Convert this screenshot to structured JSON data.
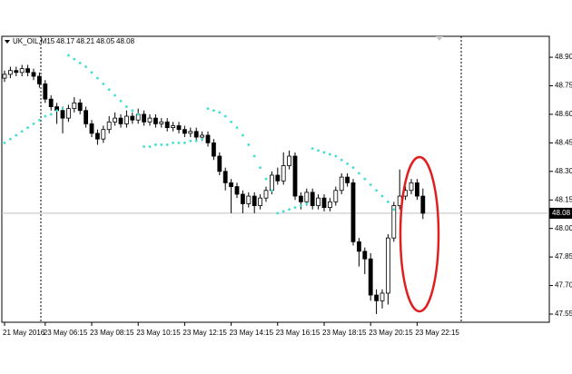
{
  "header": {
    "symbol": "UK_OIL,M15"
  },
  "chart_data": {
    "type": "candlestick",
    "categories": [
      "21 May 2016",
      null,
      null,
      null,
      null,
      null,
      null,
      "23 May 06:15",
      null,
      null,
      null,
      null,
      null,
      null,
      null,
      "23 May 08:15",
      null,
      null,
      null,
      null,
      null,
      null,
      null,
      "23 May 10:15",
      null,
      null,
      null,
      null,
      null,
      null,
      null,
      "23 May 12:15",
      null,
      null,
      null,
      null,
      null,
      null,
      null,
      "23 May 14:15",
      null,
      null,
      null,
      null,
      null,
      null,
      null,
      "23 May 16:15",
      null,
      null,
      null,
      null,
      null,
      null,
      null,
      "23 May 18:15",
      null,
      null,
      null,
      null,
      null,
      null,
      null,
      "23 May 20:15",
      null,
      null,
      null,
      null,
      null,
      null,
      null,
      "23 May 22:15",
      null
    ],
    "open": [
      48.79,
      48.81,
      48.83,
      48.82,
      48.84,
      48.82,
      48.8,
      48.76,
      48.68,
      48.64,
      48.62,
      48.58,
      48.63,
      48.66,
      48.62,
      48.55,
      48.5,
      48.47,
      48.52,
      48.56,
      48.58,
      48.55,
      48.59,
      48.57,
      48.6,
      48.56,
      48.58,
      48.55,
      48.56,
      48.53,
      48.54,
      48.52,
      48.5,
      48.51,
      48.48,
      48.49,
      48.45,
      48.38,
      48.3,
      48.24,
      48.22,
      48.18,
      48.13,
      48.17,
      48.12,
      48.16,
      48.2,
      48.28,
      48.25,
      48.33,
      48.38,
      48.17,
      48.14,
      48.19,
      48.12,
      48.16,
      48.11,
      48.14,
      48.2,
      48.27,
      48.24,
      47.93,
      47.88,
      47.84,
      47.65,
      47.62,
      47.66,
      47.95,
      48.12,
      48.17,
      48.2,
      48.24,
      48.17
    ],
    "high": [
      48.83,
      48.85,
      48.85,
      48.86,
      48.86,
      48.84,
      48.82,
      48.78,
      48.7,
      48.66,
      48.64,
      48.65,
      48.69,
      48.68,
      48.64,
      48.57,
      48.52,
      48.54,
      48.59,
      48.61,
      48.6,
      48.62,
      48.61,
      48.63,
      48.62,
      48.6,
      48.6,
      48.58,
      48.58,
      48.56,
      48.56,
      48.54,
      48.53,
      48.53,
      48.51,
      48.51,
      48.47,
      48.4,
      48.32,
      48.26,
      48.24,
      48.2,
      48.19,
      48.19,
      48.18,
      48.22,
      48.3,
      48.32,
      48.4,
      48.41,
      48.4,
      48.19,
      48.21,
      48.21,
      48.18,
      48.18,
      48.16,
      48.22,
      48.29,
      48.29,
      48.26,
      47.95,
      47.9,
      47.87,
      47.68,
      47.68,
      47.97,
      48.14,
      48.31,
      48.22,
      48.26,
      48.26,
      48.21
    ],
    "low": [
      48.77,
      48.79,
      48.8,
      48.8,
      48.8,
      48.78,
      48.74,
      48.66,
      48.62,
      48.55,
      48.5,
      48.56,
      48.61,
      48.6,
      48.53,
      48.48,
      48.44,
      48.45,
      48.5,
      48.54,
      48.53,
      48.53,
      48.55,
      48.55,
      48.54,
      48.54,
      48.53,
      48.53,
      48.51,
      48.51,
      48.5,
      48.48,
      48.48,
      48.46,
      48.46,
      48.43,
      48.36,
      48.28,
      48.2,
      48.08,
      48.16,
      48.08,
      48.11,
      48.08,
      48.1,
      48.14,
      48.18,
      48.23,
      48.23,
      48.31,
      48.15,
      48.1,
      48.12,
      48.1,
      48.1,
      48.09,
      48.09,
      48.12,
      48.18,
      48.22,
      47.91,
      47.8,
      47.76,
      47.62,
      47.55,
      47.58,
      47.6,
      47.93,
      48.1,
      48.15,
      48.18,
      48.15,
      48.05
    ],
    "close": [
      48.81,
      48.83,
      48.82,
      48.84,
      48.82,
      48.8,
      48.76,
      48.68,
      48.64,
      48.62,
      48.58,
      48.63,
      48.66,
      48.62,
      48.55,
      48.5,
      48.47,
      48.52,
      48.56,
      48.58,
      48.55,
      48.59,
      48.57,
      48.6,
      48.56,
      48.58,
      48.55,
      48.56,
      48.53,
      48.54,
      48.52,
      48.5,
      48.51,
      48.48,
      48.49,
      48.45,
      48.38,
      48.3,
      48.24,
      48.22,
      48.18,
      48.13,
      48.17,
      48.12,
      48.16,
      48.2,
      48.28,
      48.25,
      48.33,
      48.38,
      48.17,
      48.14,
      48.19,
      48.12,
      48.16,
      48.11,
      48.14,
      48.2,
      48.27,
      48.24,
      47.93,
      47.88,
      47.84,
      47.65,
      47.62,
      47.66,
      47.95,
      48.12,
      48.17,
      48.2,
      48.24,
      48.17,
      48.08
    ],
    "sar": [
      48.45,
      48.47,
      48.49,
      48.51,
      48.53,
      48.55,
      48.57,
      48.59,
      48.6,
      48.62,
      48.63,
      48.91,
      48.89,
      48.87,
      48.85,
      48.82,
      48.79,
      48.76,
      48.73,
      48.7,
      48.67,
      48.64,
      48.62,
      48.6,
      48.43,
      48.43,
      48.44,
      48.44,
      48.44,
      48.45,
      48.45,
      48.45,
      48.46,
      48.46,
      48.47,
      48.63,
      48.62,
      48.61,
      48.59,
      48.56,
      48.53,
      48.49,
      48.44,
      48.38,
      48.32,
      48.26,
      48.2,
      48.08,
      48.09,
      48.1,
      48.11,
      48.12,
      48.13,
      48.42,
      48.41,
      48.4,
      48.39,
      48.38,
      48.36,
      48.34,
      48.32,
      48.29,
      48.26,
      48.23,
      48.2,
      48.17,
      48.14,
      48.1,
      null,
      null,
      null,
      null,
      null
    ],
    "last_price": 48.08,
    "up_color": "#ffffff",
    "down_color": "#000000",
    "sar_color": "#40e0d0",
    "ylim": [
      47.507,
      49.01
    ],
    "yticks": [
      {
        "value": 48.9,
        "label": "48.90"
      },
      48.75,
      {
        "value": 48.6,
        "label": "48.60"
      },
      48.45,
      {
        "value": 48.3,
        "label": "48.30"
      },
      48.15,
      {
        "value": 48.0,
        "label": "48.00"
      },
      47.85,
      {
        "value": 47.7,
        "label": "47.70"
      },
      47.55
    ]
  }
}
